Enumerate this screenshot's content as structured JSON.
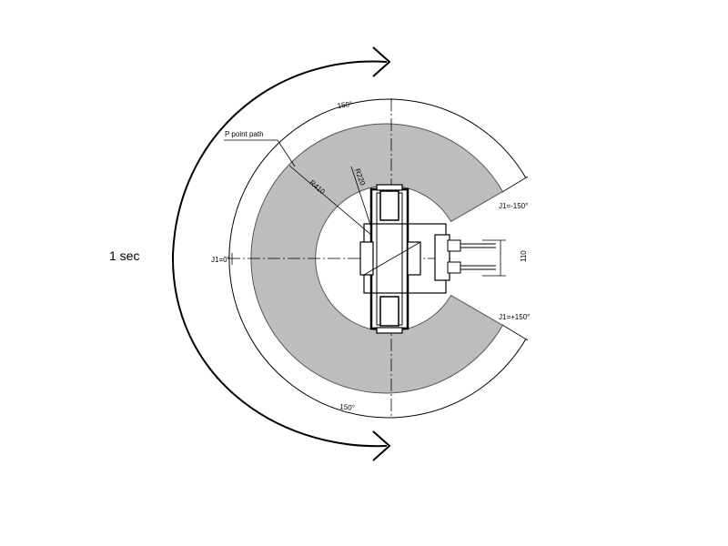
{
  "diagram": {
    "time_label": "1 sec",
    "path_label": "P point path",
    "outer_radius_label": "R410",
    "inner_radius_label": "R220",
    "top_angle_label": "150°",
    "bottom_angle_label": "150°",
    "j1_zero_label": "J1=0°",
    "j1_minus_label": "J1=-150°",
    "j1_plus_label": "J1=+150°",
    "dimension_label": "110",
    "colors": {
      "sector_fill": "#bdbdbd",
      "line": "#000000",
      "background": "#ffffff"
    }
  }
}
